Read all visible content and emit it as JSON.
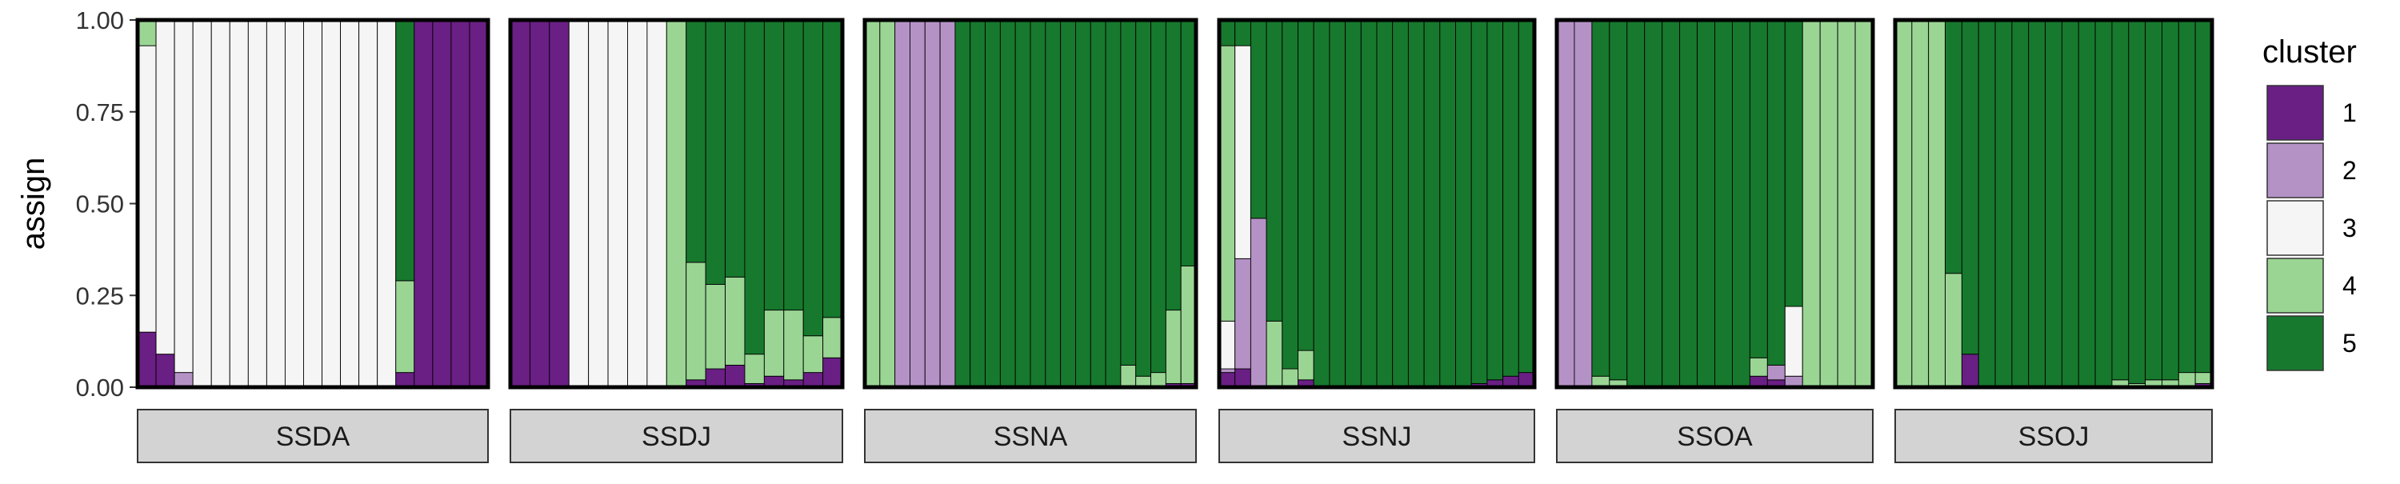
{
  "chart_data": {
    "type": "bar",
    "stacked": true,
    "ylabel": "assign",
    "ylim": [
      0,
      1
    ],
    "yticks": [
      "0.00",
      "0.25",
      "0.50",
      "0.75",
      "1.00"
    ],
    "legend": {
      "title": "cluster",
      "position": "right",
      "entries": [
        {
          "label": "1",
          "color": "#6a1f84"
        },
        {
          "label": "2",
          "color": "#b592c6"
        },
        {
          "label": "3",
          "color": "#f5f5f5"
        },
        {
          "label": "4",
          "color": "#9ad594"
        },
        {
          "label": "5",
          "color": "#17792d"
        }
      ]
    },
    "stack_order_bottom_to_top": [
      "1",
      "2",
      "3",
      "4",
      "5"
    ],
    "panels": [
      {
        "name": "SSDA",
        "individuals": [
          [
            0.15,
            0,
            0.78,
            0.07,
            0
          ],
          [
            0.09,
            0,
            0.91,
            0,
            0
          ],
          [
            0,
            0.04,
            0.96,
            0,
            0
          ],
          [
            0,
            0,
            1,
            0,
            0
          ],
          [
            0,
            0,
            1,
            0,
            0
          ],
          [
            0,
            0,
            1,
            0,
            0
          ],
          [
            0,
            0,
            1,
            0,
            0
          ],
          [
            0,
            0,
            1,
            0,
            0
          ],
          [
            0,
            0,
            1,
            0,
            0
          ],
          [
            0,
            0,
            1,
            0,
            0
          ],
          [
            0,
            0,
            1,
            0,
            0
          ],
          [
            0,
            0,
            1,
            0,
            0
          ],
          [
            0,
            0,
            1,
            0,
            0
          ],
          [
            0,
            0,
            1,
            0,
            0
          ],
          [
            0.04,
            0,
            0,
            0.25,
            0.71
          ],
          [
            1,
            0,
            0,
            0,
            0
          ],
          [
            1,
            0,
            0,
            0,
            0
          ],
          [
            1,
            0,
            0,
            0,
            0
          ],
          [
            1,
            0,
            0,
            0,
            0
          ]
        ]
      },
      {
        "name": "SSDJ",
        "individuals": [
          [
            1,
            0,
            0,
            0,
            0
          ],
          [
            1,
            0,
            0,
            0,
            0
          ],
          [
            1,
            0,
            0,
            0,
            0
          ],
          [
            0,
            0,
            1,
            0,
            0
          ],
          [
            0,
            0,
            1,
            0,
            0
          ],
          [
            0,
            0,
            1,
            0,
            0
          ],
          [
            0,
            0,
            1,
            0,
            0
          ],
          [
            0,
            0,
            1,
            0,
            0
          ],
          [
            0,
            0,
            0,
            1,
            0
          ],
          [
            0.02,
            0,
            0,
            0.32,
            0.66
          ],
          [
            0.05,
            0,
            0,
            0.23,
            0.72
          ],
          [
            0.06,
            0,
            0,
            0.24,
            0.7
          ],
          [
            0.01,
            0,
            0,
            0.08,
            0.91
          ],
          [
            0.03,
            0,
            0,
            0.18,
            0.79
          ],
          [
            0.02,
            0,
            0,
            0.19,
            0.79
          ],
          [
            0.04,
            0,
            0,
            0.1,
            0.86
          ],
          [
            0.08,
            0,
            0,
            0.11,
            0.81
          ]
        ]
      },
      {
        "name": "SSNA",
        "individuals": [
          [
            0,
            0,
            0,
            1,
            0
          ],
          [
            0,
            0,
            0,
            1,
            0
          ],
          [
            0,
            1,
            0,
            0,
            0
          ],
          [
            0,
            1,
            0,
            0,
            0
          ],
          [
            0,
            1,
            0,
            0,
            0
          ],
          [
            0,
            1,
            0,
            0,
            0
          ],
          [
            0,
            0,
            0,
            0,
            1
          ],
          [
            0,
            0,
            0,
            0,
            1
          ],
          [
            0,
            0,
            0,
            0,
            1
          ],
          [
            0,
            0,
            0,
            0,
            1
          ],
          [
            0,
            0,
            0,
            0,
            1
          ],
          [
            0,
            0,
            0,
            0,
            1
          ],
          [
            0,
            0,
            0,
            0,
            1
          ],
          [
            0,
            0,
            0,
            0,
            1
          ],
          [
            0,
            0,
            0,
            0,
            1
          ],
          [
            0,
            0,
            0,
            0,
            1
          ],
          [
            0,
            0,
            0,
            0,
            1
          ],
          [
            0,
            0,
            0,
            0.06,
            0.94
          ],
          [
            0,
            0,
            0,
            0.03,
            0.97
          ],
          [
            0,
            0,
            0,
            0.04,
            0.96
          ],
          [
            0.01,
            0,
            0,
            0.2,
            0.79
          ],
          [
            0.01,
            0,
            0,
            0.32,
            0.67
          ]
        ]
      },
      {
        "name": "SSNJ",
        "individuals": [
          [
            0.04,
            0.01,
            0.13,
            0.75,
            0.07
          ],
          [
            0.05,
            0.3,
            0.58,
            0,
            0.07
          ],
          [
            0,
            0.46,
            0,
            0,
            0.54
          ],
          [
            0,
            0,
            0,
            0.18,
            0.82
          ],
          [
            0,
            0,
            0,
            0.05,
            0.95
          ],
          [
            0.02,
            0,
            0,
            0.08,
            0.9
          ],
          [
            0,
            0,
            0,
            0,
            1
          ],
          [
            0,
            0,
            0,
            0,
            1
          ],
          [
            0,
            0,
            0,
            0,
            1
          ],
          [
            0,
            0,
            0,
            0,
            1
          ],
          [
            0,
            0,
            0,
            0,
            1
          ],
          [
            0,
            0,
            0,
            0,
            1
          ],
          [
            0,
            0,
            0,
            0,
            1
          ],
          [
            0,
            0,
            0,
            0,
            1
          ],
          [
            0,
            0,
            0,
            0,
            1
          ],
          [
            0,
            0,
            0,
            0,
            1
          ],
          [
            0.01,
            0,
            0,
            0,
            0.99
          ],
          [
            0.02,
            0,
            0,
            0,
            0.98
          ],
          [
            0.03,
            0,
            0,
            0,
            0.97
          ],
          [
            0.04,
            0,
            0,
            0,
            0.96
          ]
        ]
      },
      {
        "name": "SSOA",
        "individuals": [
          [
            0,
            1,
            0,
            0,
            0
          ],
          [
            0,
            1,
            0,
            0,
            0
          ],
          [
            0,
            0,
            0,
            0.03,
            0.97
          ],
          [
            0,
            0,
            0,
            0.02,
            0.98
          ],
          [
            0,
            0,
            0,
            0,
            1
          ],
          [
            0,
            0,
            0,
            0,
            1
          ],
          [
            0,
            0,
            0,
            0,
            1
          ],
          [
            0,
            0,
            0,
            0,
            1
          ],
          [
            0,
            0,
            0,
            0,
            1
          ],
          [
            0,
            0,
            0,
            0,
            1
          ],
          [
            0,
            0,
            0,
            0,
            1
          ],
          [
            0.03,
            0,
            0,
            0.05,
            0.92
          ],
          [
            0.02,
            0.04,
            0,
            0,
            0.94
          ],
          [
            0,
            0.03,
            0.19,
            0,
            0.78
          ],
          [
            0,
            0,
            0,
            1,
            0
          ],
          [
            0,
            0,
            0,
            1,
            0
          ],
          [
            0,
            0,
            0,
            1,
            0
          ],
          [
            0,
            0,
            0,
            1,
            0
          ]
        ]
      },
      {
        "name": "SSOJ",
        "individuals": [
          [
            0,
            0,
            0,
            1,
            0
          ],
          [
            0,
            0,
            0,
            1,
            0
          ],
          [
            0,
            0,
            0,
            1,
            0
          ],
          [
            0,
            0,
            0,
            0.31,
            0.69
          ],
          [
            0.09,
            0,
            0,
            0,
            0.91
          ],
          [
            0,
            0,
            0,
            0,
            1
          ],
          [
            0,
            0,
            0,
            0,
            1
          ],
          [
            0,
            0,
            0,
            0,
            1
          ],
          [
            0,
            0,
            0,
            0,
            1
          ],
          [
            0,
            0,
            0,
            0,
            1
          ],
          [
            0,
            0,
            0,
            0,
            1
          ],
          [
            0,
            0,
            0,
            0,
            1
          ],
          [
            0,
            0,
            0,
            0,
            1
          ],
          [
            0,
            0,
            0,
            0.02,
            0.98
          ],
          [
            0,
            0,
            0,
            0.01,
            0.99
          ],
          [
            0,
            0,
            0,
            0.02,
            0.98
          ],
          [
            0,
            0,
            0,
            0.02,
            0.98
          ],
          [
            0,
            0,
            0,
            0.04,
            0.96
          ],
          [
            0.01,
            0,
            0,
            0.03,
            0.96
          ]
        ]
      }
    ]
  }
}
